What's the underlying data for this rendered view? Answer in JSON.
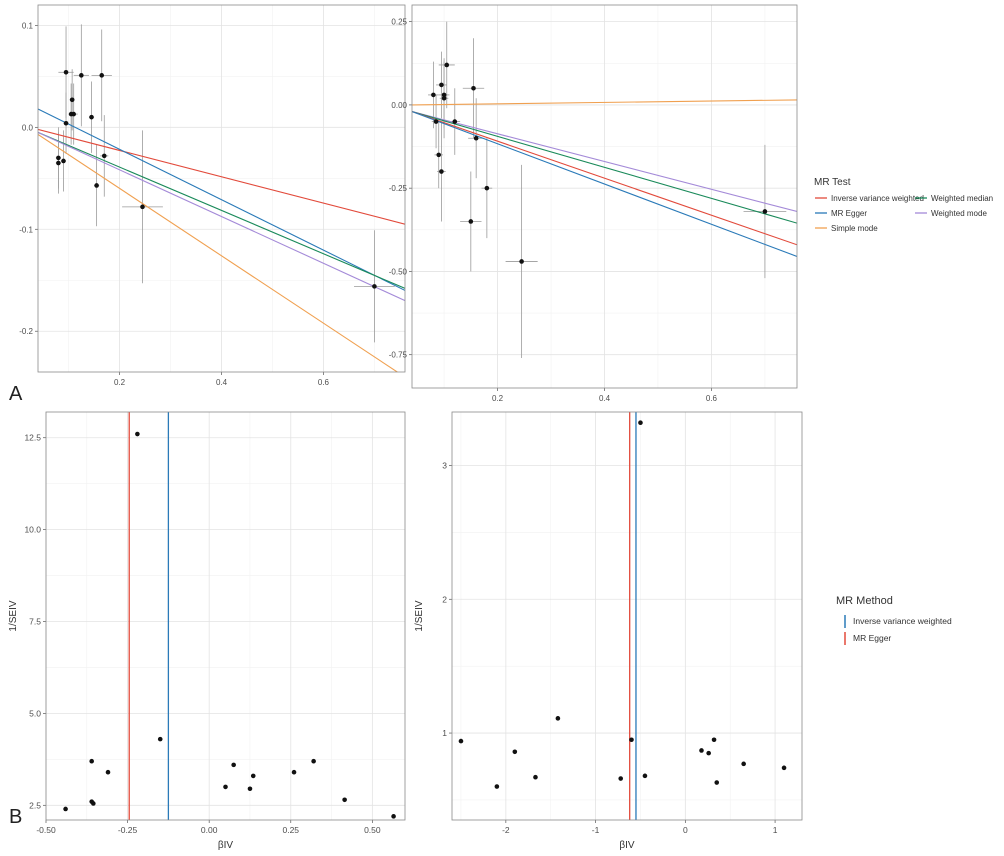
{
  "panel_labels": {
    "a": "A",
    "b": "B"
  },
  "legends": {
    "mr_test": {
      "title": "MR Test",
      "items": [
        {
          "label": "Inverse variance weighted",
          "color": "#e24a3b"
        },
        {
          "label": "Weighted median",
          "color": "#1a8a5a"
        },
        {
          "label": "MR Egger",
          "color": "#2a7ab8"
        },
        {
          "label": "Weighted mode",
          "color": "#a48ad8"
        },
        {
          "label": "Simple mode",
          "color": "#f0a050"
        }
      ]
    },
    "mr_method": {
      "title": "MR Method",
      "items": [
        {
          "label": "Inverse variance weighted",
          "color": "#2a7ab8"
        },
        {
          "label": "MR Egger",
          "color": "#e24a3b"
        }
      ]
    }
  },
  "chart_data": [
    {
      "type": "scatter",
      "id": "scatter-left",
      "title": "",
      "xlabel": "",
      "ylabel": "",
      "xlim": [
        0.04,
        0.76
      ],
      "ylim": [
        -0.24,
        0.12
      ],
      "xticks": [
        0.2,
        0.4,
        0.6
      ],
      "xtick_labels": [
        "0.2",
        "0.4",
        "0.6"
      ],
      "yticks": [
        0.1,
        0.0,
        -0.1,
        -0.2
      ],
      "ytick_labels": [
        "0.1",
        "0.0",
        "-0.1",
        "-0.2"
      ],
      "grid": true,
      "points": [
        {
          "x": 0.08,
          "y": -0.035,
          "xerr": 0.005,
          "yerr": 0.03
        },
        {
          "x": 0.08,
          "y": -0.03,
          "xerr": 0.005,
          "yerr": 0.03
        },
        {
          "x": 0.09,
          "y": -0.033,
          "xerr": 0.005,
          "yerr": 0.03
        },
        {
          "x": 0.095,
          "y": 0.054,
          "xerr": 0.015,
          "yerr": 0.045
        },
        {
          "x": 0.095,
          "y": 0.004,
          "xerr": 0.005,
          "yerr": 0.03
        },
        {
          "x": 0.105,
          "y": 0.013,
          "xerr": 0.005,
          "yerr": 0.03
        },
        {
          "x": 0.107,
          "y": 0.027,
          "xerr": 0.005,
          "yerr": 0.03
        },
        {
          "x": 0.11,
          "y": 0.013,
          "xerr": 0.008,
          "yerr": 0.03
        },
        {
          "x": 0.125,
          "y": 0.051,
          "xerr": 0.015,
          "yerr": 0.05
        },
        {
          "x": 0.145,
          "y": 0.01,
          "xerr": 0.005,
          "yerr": 0.035
        },
        {
          "x": 0.155,
          "y": -0.057,
          "xerr": 0.005,
          "yerr": 0.04
        },
        {
          "x": 0.165,
          "y": 0.051,
          "xerr": 0.02,
          "yerr": 0.045
        },
        {
          "x": 0.17,
          "y": -0.028,
          "xerr": 0.008,
          "yerr": 0.04
        },
        {
          "x": 0.245,
          "y": -0.078,
          "xerr": 0.04,
          "yerr": 0.075
        },
        {
          "x": 0.7,
          "y": -0.156,
          "xerr": 0.04,
          "yerr": 0.055
        }
      ],
      "lines": [
        {
          "name": "Inverse variance weighted",
          "color": "#e24a3b",
          "x": [
            0.04,
            0.76
          ],
          "y": [
            -0.002,
            -0.095
          ]
        },
        {
          "name": "MR Egger",
          "color": "#2a7ab8",
          "x": [
            0.04,
            0.76
          ],
          "y": [
            0.018,
            -0.16
          ]
        },
        {
          "name": "Weighted median",
          "color": "#1a8a5a",
          "x": [
            0.04,
            0.76
          ],
          "y": [
            -0.005,
            -0.158
          ]
        },
        {
          "name": "Weighted mode",
          "color": "#a48ad8",
          "x": [
            0.04,
            0.76
          ],
          "y": [
            -0.005,
            -0.17
          ]
        },
        {
          "name": "Simple mode",
          "color": "#f0a050",
          "x": [
            0.04,
            0.76
          ],
          "y": [
            -0.007,
            -0.245
          ]
        }
      ]
    },
    {
      "type": "scatter",
      "id": "scatter-right",
      "title": "",
      "xlabel": "",
      "ylabel": "",
      "xlim": [
        0.04,
        0.76
      ],
      "ylim": [
        -0.85,
        0.3
      ],
      "xticks": [
        0.2,
        0.4,
        0.6
      ],
      "xtick_labels": [
        "0.2",
        "0.4",
        "0.6"
      ],
      "yticks": [
        0.25,
        0.0,
        -0.25,
        -0.5,
        -0.75
      ],
      "ytick_labels": [
        "0.25",
        "0.00",
        "-0.25",
        "-0.50",
        "-0.75"
      ],
      "grid": true,
      "points": [
        {
          "x": 0.08,
          "y": 0.03,
          "xerr": 0.01,
          "yerr": 0.1
        },
        {
          "x": 0.085,
          "y": -0.05,
          "xerr": 0.008,
          "yerr": 0.08
        },
        {
          "x": 0.09,
          "y": -0.15,
          "xerr": 0.008,
          "yerr": 0.1
        },
        {
          "x": 0.095,
          "y": 0.06,
          "xerr": 0.01,
          "yerr": 0.1
        },
        {
          "x": 0.095,
          "y": -0.2,
          "xerr": 0.008,
          "yerr": 0.15
        },
        {
          "x": 0.1,
          "y": 0.03,
          "xerr": 0.01,
          "yerr": 0.1
        },
        {
          "x": 0.1,
          "y": 0.02,
          "xerr": 0.008,
          "yerr": 0.12
        },
        {
          "x": 0.105,
          "y": 0.12,
          "xerr": 0.015,
          "yerr": 0.13
        },
        {
          "x": 0.12,
          "y": -0.05,
          "xerr": 0.01,
          "yerr": 0.1
        },
        {
          "x": 0.15,
          "y": -0.35,
          "xerr": 0.02,
          "yerr": 0.15
        },
        {
          "x": 0.155,
          "y": 0.05,
          "xerr": 0.02,
          "yerr": 0.15
        },
        {
          "x": 0.16,
          "y": -0.1,
          "xerr": 0.015,
          "yerr": 0.12
        },
        {
          "x": 0.18,
          "y": -0.25,
          "xerr": 0.01,
          "yerr": 0.15
        },
        {
          "x": 0.245,
          "y": -0.47,
          "xerr": 0.03,
          "yerr": 0.29
        },
        {
          "x": 0.7,
          "y": -0.32,
          "xerr": 0.04,
          "yerr": 0.2
        }
      ],
      "lines": [
        {
          "name": "Simple mode",
          "color": "#f0a050",
          "x": [
            0.04,
            0.76
          ],
          "y": [
            0.0,
            0.015
          ]
        },
        {
          "name": "Weighted mode",
          "color": "#a48ad8",
          "x": [
            0.04,
            0.76
          ],
          "y": [
            -0.02,
            -0.32
          ]
        },
        {
          "name": "Weighted median",
          "color": "#1a8a5a",
          "x": [
            0.04,
            0.76
          ],
          "y": [
            -0.02,
            -0.355
          ]
        },
        {
          "name": "Inverse variance weighted",
          "color": "#e24a3b",
          "x": [
            0.04,
            0.76
          ],
          "y": [
            -0.02,
            -0.42
          ]
        },
        {
          "name": "MR Egger",
          "color": "#2a7ab8",
          "x": [
            0.04,
            0.76
          ],
          "y": [
            -0.02,
            -0.455
          ]
        }
      ]
    },
    {
      "type": "scatter",
      "id": "funnel-left",
      "title": "",
      "xlabel": "βIV",
      "ylabel": "1/SEIV",
      "xlim": [
        -0.5,
        0.6
      ],
      "ylim": [
        2.1,
        13.2
      ],
      "xticks": [
        -0.5,
        -0.25,
        0.0,
        0.25,
        0.5
      ],
      "xtick_labels": [
        "-0.50",
        "-0.25",
        "0.00",
        "0.25",
        "0.50"
      ],
      "yticks": [
        2.5,
        5.0,
        7.5,
        10.0,
        12.5
      ],
      "ytick_labels": [
        "2.5",
        "5.0",
        "7.5",
        "10.0",
        "12.5"
      ],
      "grid": true,
      "points": [
        {
          "x": -0.22,
          "y": 12.6
        },
        {
          "x": -0.15,
          "y": 4.3
        },
        {
          "x": -0.36,
          "y": 3.7
        },
        {
          "x": -0.31,
          "y": 3.4
        },
        {
          "x": -0.36,
          "y": 2.6
        },
        {
          "x": -0.355,
          "y": 2.55
        },
        {
          "x": -0.44,
          "y": 2.4
        },
        {
          "x": 0.05,
          "y": 3.0
        },
        {
          "x": 0.075,
          "y": 3.6
        },
        {
          "x": 0.135,
          "y": 3.3
        },
        {
          "x": 0.125,
          "y": 2.95
        },
        {
          "x": 0.26,
          "y": 3.4
        },
        {
          "x": 0.32,
          "y": 3.7
        },
        {
          "x": 0.415,
          "y": 2.65
        },
        {
          "x": 0.565,
          "y": 2.2
        }
      ],
      "vlines": [
        {
          "name": "MR Egger",
          "color": "#e24a3b",
          "x": -0.245
        },
        {
          "name": "Inverse variance weighted",
          "color": "#2a7ab8",
          "x": -0.125
        }
      ]
    },
    {
      "type": "scatter",
      "id": "funnel-right",
      "title": "",
      "xlabel": "βIV",
      "ylabel": "1/SEIV",
      "xlim": [
        -2.6,
        1.3
      ],
      "ylim": [
        0.35,
        3.4
      ],
      "xticks": [
        -2,
        -1,
        0,
        1
      ],
      "xtick_labels": [
        "-2",
        "-1",
        "0",
        "1"
      ],
      "yticks": [
        1,
        2,
        3
      ],
      "ytick_labels": [
        "1",
        "2",
        "3"
      ],
      "grid": true,
      "points": [
        {
          "x": -0.5,
          "y": 3.32
        },
        {
          "x": -1.42,
          "y": 1.11
        },
        {
          "x": -2.5,
          "y": 0.94
        },
        {
          "x": -0.6,
          "y": 0.95
        },
        {
          "x": -1.9,
          "y": 0.86
        },
        {
          "x": -2.1,
          "y": 0.6
        },
        {
          "x": -1.67,
          "y": 0.67
        },
        {
          "x": -0.72,
          "y": 0.66
        },
        {
          "x": -0.45,
          "y": 0.68
        },
        {
          "x": 0.18,
          "y": 0.87
        },
        {
          "x": 0.26,
          "y": 0.85
        },
        {
          "x": 0.32,
          "y": 0.95
        },
        {
          "x": 0.35,
          "y": 0.63
        },
        {
          "x": 0.65,
          "y": 0.77
        },
        {
          "x": 1.1,
          "y": 0.74
        }
      ],
      "vlines": [
        {
          "name": "MR Egger",
          "color": "#e24a3b",
          "x": -0.62
        },
        {
          "name": "Inverse variance weighted",
          "color": "#2a7ab8",
          "x": -0.55
        }
      ]
    }
  ]
}
